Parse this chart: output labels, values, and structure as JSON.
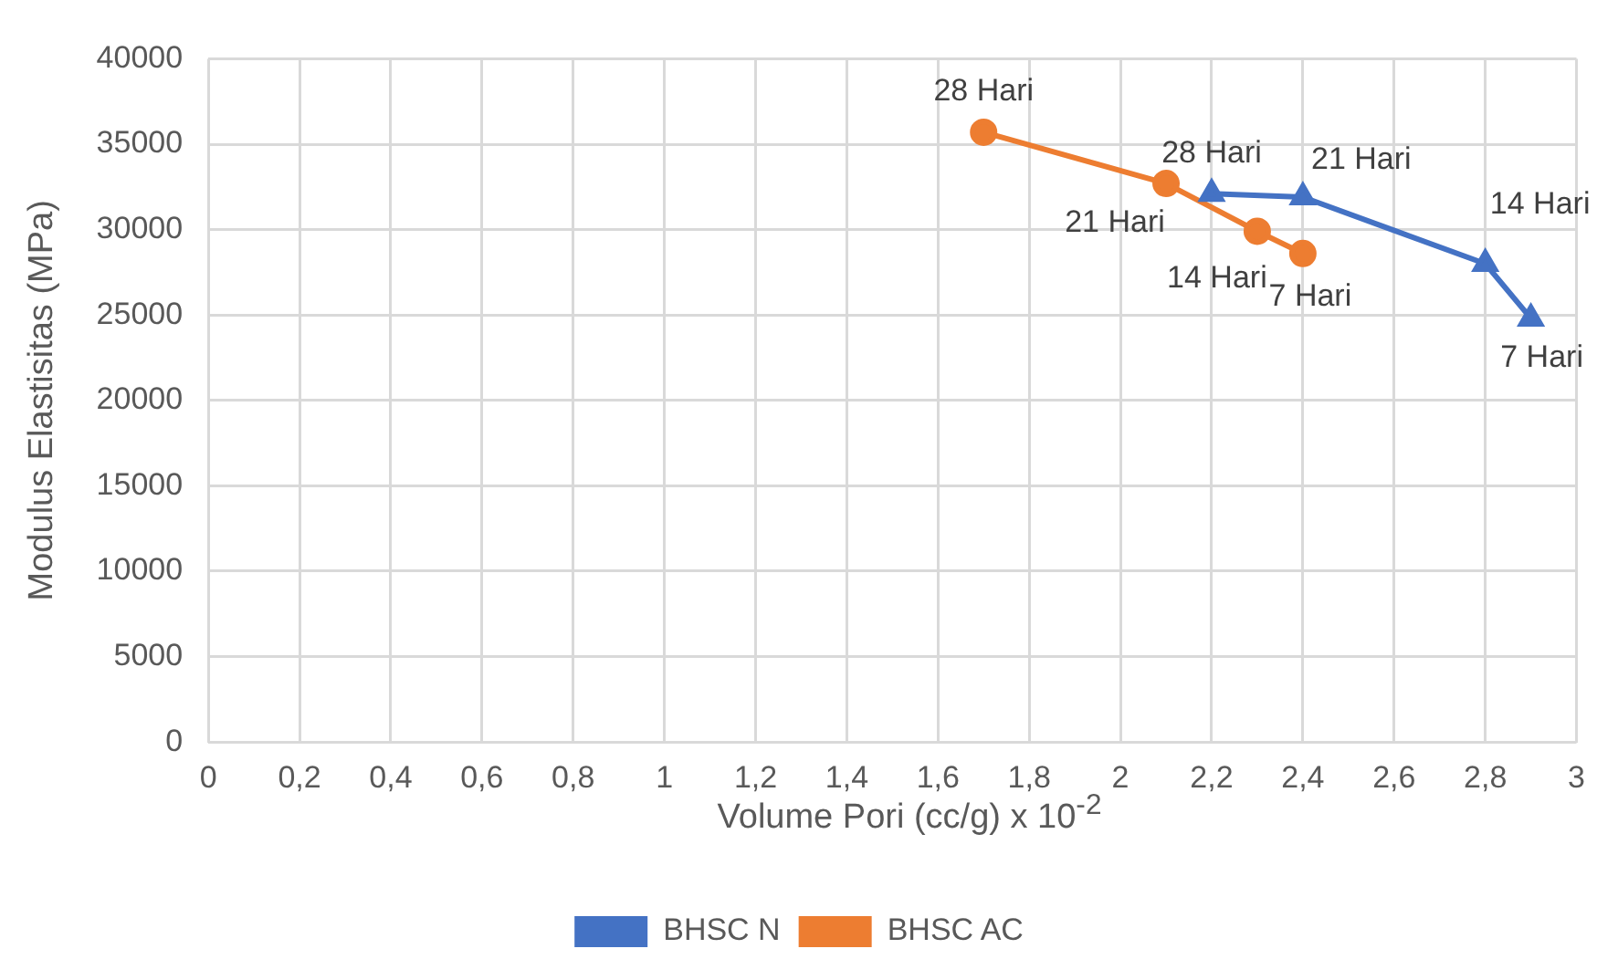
{
  "chart_data": {
    "type": "line",
    "xlabel": "Volume Pori (cc/g) x 10$^{-2}$",
    "ylabel": "Modulus Elastisitas (MPa)",
    "series": [
      {
        "name": "BHSC N",
        "color": "#4472c4",
        "marker": "triangle",
        "x": [
          2.2,
          2.4,
          2.8,
          2.9
        ],
        "values": [
          32100,
          31900,
          28000,
          24800
        ]
      },
      {
        "name": "BHSC AC",
        "color": "#ed7d31",
        "marker": "circle",
        "x": [
          1.7,
          2.1,
          2.3,
          2.4
        ],
        "values": [
          35700,
          32700,
          29900,
          28600
        ]
      }
    ],
    "xlim": [
      0,
      3
    ],
    "xticks": [
      0,
      {
        "value": 0.2,
        "label": "0,2"
      },
      {
        "value": 0.4,
        "label": "0,4"
      },
      {
        "value": 0.6,
        "label": "0,6"
      },
      {
        "value": 0.8,
        "label": "0,8"
      },
      1,
      {
        "value": 1.2,
        "label": "1,2"
      },
      {
        "value": 1.4,
        "label": "1,4"
      },
      {
        "value": 1.6,
        "label": "1,6"
      },
      {
        "value": 1.8,
        "label": "1,8"
      },
      2,
      {
        "value": 2.2,
        "label": "2,2"
      },
      {
        "value": 2.4,
        "label": "2,4"
      },
      {
        "value": 2.6,
        "label": "2,6"
      },
      {
        "value": 2.8,
        "label": "2,8"
      },
      3
    ],
    "ylim": [
      0,
      40000
    ],
    "yticks": [
      0,
      5000,
      10000,
      15000,
      20000,
      25000,
      30000,
      35000,
      40000
    ],
    "grid": true,
    "legend": "bottom",
    "annotations": [
      {
        "text": "28 Hari",
        "x": 2.2,
        "y": 32100
      },
      {
        "text": "21 Hari",
        "x": 2.4,
        "y": 31900
      },
      {
        "text": "14 Hari",
        "x": 2.8,
        "y": 28000
      },
      {
        "text": "7 Hari",
        "x": 2.9,
        "y": 24800
      },
      {
        "text": "28 Hari",
        "x": 1.7,
        "y": 35700
      },
      {
        "text": "21 Hari",
        "x": 2.1,
        "y": 32700
      },
      {
        "text": "14 Hari",
        "x": 2.3,
        "y": 29900
      },
      {
        "text": "7 Hari",
        "x": 2.4,
        "y": 28600
      }
    ]
  }
}
